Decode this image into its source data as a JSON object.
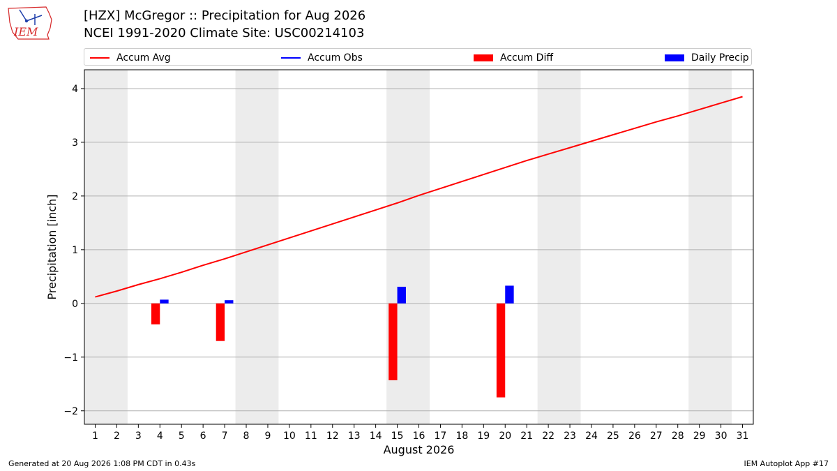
{
  "logo": {
    "text": "IEM",
    "color": "#d62728"
  },
  "header": {
    "title": "[HZX] McGregor :: Precipitation for Aug 2026",
    "subtitle": "NCEI 1991-2020 Climate Site: USC00214103"
  },
  "legend": {
    "items": [
      {
        "label": "Accum Avg",
        "kind": "line",
        "color": "#ff0000"
      },
      {
        "label": "Accum Obs",
        "kind": "line",
        "color": "#0000ff"
      },
      {
        "label": "Accum Diff",
        "kind": "box",
        "color": "#ff0000"
      },
      {
        "label": "Daily Precip",
        "kind": "box",
        "color": "#0000ff"
      }
    ]
  },
  "footer": {
    "left": "Generated at 20 Aug 2026 1:08 PM CDT in 0.43s",
    "right": "IEM Autoplot App #17"
  },
  "chart_data": {
    "type": "bar",
    "xlabel": "August 2026",
    "ylabel": "Precipitation [inch]",
    "xlim": [
      0.5,
      31.5
    ],
    "ylim": [
      -2.25,
      4.35
    ],
    "yticks": [
      -2,
      -1,
      0,
      1,
      2,
      3,
      4
    ],
    "xticks": [
      1,
      2,
      3,
      4,
      5,
      6,
      7,
      8,
      9,
      10,
      11,
      12,
      13,
      14,
      15,
      16,
      17,
      18,
      19,
      20,
      21,
      22,
      23,
      24,
      25,
      26,
      27,
      28,
      29,
      30,
      31
    ],
    "grid": "y",
    "legend_position": "top",
    "weekend_shading": [
      [
        0.5,
        2.5
      ],
      [
        7.5,
        9.5
      ],
      [
        14.5,
        16.5
      ],
      [
        21.5,
        23.5
      ],
      [
        28.5,
        30.5
      ]
    ],
    "series": [
      {
        "name": "Accum Avg",
        "type": "line",
        "color": "#ff0000",
        "x": [
          1,
          2,
          3,
          4,
          5,
          6,
          7,
          8,
          9,
          10,
          11,
          12,
          13,
          14,
          15,
          16,
          17,
          18,
          19,
          20,
          21,
          22,
          23,
          24,
          25,
          26,
          27,
          28,
          29,
          30,
          31
        ],
        "values": [
          0.12,
          0.23,
          0.35,
          0.46,
          0.58,
          0.71,
          0.83,
          0.96,
          1.09,
          1.22,
          1.35,
          1.48,
          1.61,
          1.74,
          1.87,
          2.01,
          2.14,
          2.27,
          2.4,
          2.53,
          2.66,
          2.78,
          2.9,
          3.02,
          3.14,
          3.26,
          3.38,
          3.49,
          3.61,
          3.73,
          3.85
        ]
      },
      {
        "name": "Accum Obs",
        "type": "line",
        "color": "#0000ff",
        "x": [],
        "values": []
      },
      {
        "name": "Accum Diff",
        "type": "bar",
        "color": "#ff0000",
        "x": [
          4,
          7,
          15,
          20
        ],
        "values": [
          -0.39,
          -0.7,
          -1.43,
          -1.75
        ]
      },
      {
        "name": "Daily Precip",
        "type": "bar",
        "color": "#0000ff",
        "x": [
          4,
          7,
          15,
          20
        ],
        "values": [
          0.07,
          0.06,
          0.31,
          0.33
        ]
      }
    ]
  }
}
